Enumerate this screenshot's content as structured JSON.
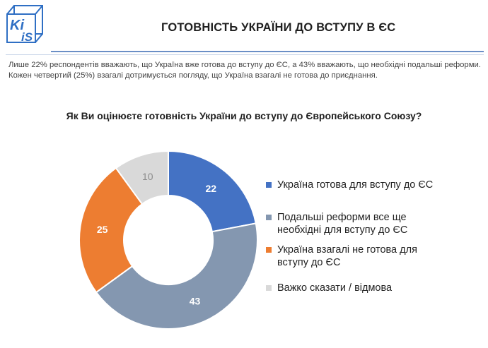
{
  "header": {
    "logo_text_top": "Ki",
    "logo_text_bottom": "iS",
    "title": "ГОТОВНІСТЬ УКРАЇНИ ДО ВСТУПУ В ЄС"
  },
  "summary": "Лише 22% респондентів вважають, що Україна вже готова до вступу до ЄС, а 43% вважають, що необхідні подальші реформи. Кожен четвертий (25%) взагалі дотримується погляду, що Україна взагалі не готова до приєднання.",
  "question": "Як Ви оцінюєте готовність України до вступу до Європейського Союзу?",
  "colors": {
    "accent": "#4472c4",
    "logo": "#2f6fc4"
  },
  "chart_data": {
    "type": "pie",
    "variant": "donut",
    "legend_position": "right",
    "series": [
      {
        "name": "Україна готова для вступу до ЄС",
        "value": 22,
        "label": "22",
        "color": "#4472c4",
        "label_color": "#ffffff"
      },
      {
        "name": "Подальші реформи все ще необхідні для вступу до ЄС",
        "value": 43,
        "label": "43",
        "color": "#8497b0",
        "label_color": "#ffffff"
      },
      {
        "name": "Україна взагалі не готова для вступу до ЄС",
        "value": 25,
        "label": "25",
        "color": "#ed7d31",
        "label_color": "#ffffff"
      },
      {
        "name": "Важко сказати / відмова",
        "value": 10,
        "label": "10",
        "color": "#d9d9d9",
        "label_color": "#8c8c8c"
      }
    ]
  }
}
